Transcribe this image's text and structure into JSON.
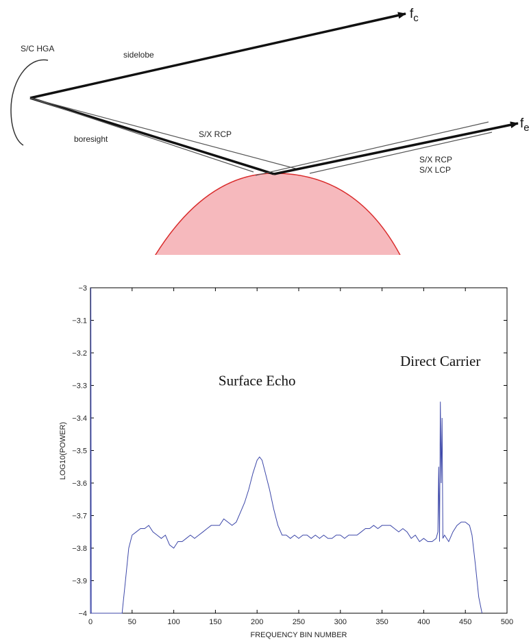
{
  "diagram": {
    "labels": {
      "hga": "S/C HGA",
      "sidelobe": "sidelobe",
      "boresight": "boresight",
      "rcp_in": "S/X RCP",
      "rcp_out": "S/X RCP",
      "lcp_out": "S/X LCP",
      "fc_main": "f",
      "fc_sub": "c",
      "fe_main": "f",
      "fe_sub": "e"
    },
    "colors": {
      "planet_fill": "#f6b9bd",
      "planet_stroke": "#d92b2b"
    }
  },
  "chart_data": {
    "type": "line",
    "title": "",
    "xlabel": "FREQUENCY BIN NUMBER",
    "ylabel": "LOG10(POWER)",
    "xlim": [
      0,
      500
    ],
    "ylim": [
      -4,
      -3
    ],
    "xticks": [
      0,
      50,
      100,
      150,
      200,
      250,
      300,
      350,
      400,
      450,
      500
    ],
    "yticks": [
      -3,
      -3.1,
      -3.2,
      -3.3,
      -3.4,
      -3.5,
      -3.6,
      -3.7,
      -3.8,
      -3.9,
      -4
    ],
    "annotations": [
      {
        "text": "Surface Echo",
        "x": 200,
        "y": -3.3
      },
      {
        "text": "Direct Carrier",
        "x": 420,
        "y": -3.24
      }
    ],
    "series": [
      {
        "color": "#3b46a8",
        "x": [
          0,
          0.5,
          1,
          38,
          42,
          46,
          50,
          55,
          60,
          65,
          70,
          75,
          80,
          85,
          90,
          95,
          100,
          105,
          110,
          115,
          120,
          125,
          130,
          135,
          140,
          145,
          150,
          155,
          160,
          165,
          170,
          175,
          180,
          185,
          190,
          195,
          200,
          203,
          206,
          210,
          215,
          220,
          225,
          230,
          235,
          240,
          245,
          250,
          255,
          260,
          265,
          270,
          275,
          280,
          285,
          290,
          295,
          300,
          305,
          310,
          315,
          320,
          325,
          330,
          335,
          340,
          345,
          350,
          355,
          360,
          365,
          370,
          375,
          380,
          385,
          390,
          395,
          400,
          405,
          410,
          415,
          417,
          418,
          419,
          420,
          421,
          422,
          423,
          425,
          430,
          435,
          440,
          445,
          450,
          455,
          458,
          462,
          466,
          470
        ],
        "y": [
          -4,
          -3,
          -4,
          -4,
          -3.9,
          -3.8,
          -3.76,
          -3.75,
          -3.74,
          -3.74,
          -3.73,
          -3.75,
          -3.76,
          -3.77,
          -3.76,
          -3.79,
          -3.8,
          -3.78,
          -3.78,
          -3.77,
          -3.76,
          -3.77,
          -3.76,
          -3.75,
          -3.74,
          -3.73,
          -3.73,
          -3.73,
          -3.71,
          -3.72,
          -3.73,
          -3.72,
          -3.69,
          -3.66,
          -3.62,
          -3.57,
          -3.53,
          -3.52,
          -3.53,
          -3.57,
          -3.62,
          -3.68,
          -3.73,
          -3.76,
          -3.76,
          -3.77,
          -3.76,
          -3.77,
          -3.76,
          -3.76,
          -3.77,
          -3.76,
          -3.77,
          -3.76,
          -3.77,
          -3.77,
          -3.76,
          -3.76,
          -3.77,
          -3.76,
          -3.76,
          -3.76,
          -3.75,
          -3.74,
          -3.74,
          -3.73,
          -3.74,
          -3.73,
          -3.73,
          -3.73,
          -3.74,
          -3.75,
          -3.74,
          -3.75,
          -3.77,
          -3.76,
          -3.78,
          -3.77,
          -3.78,
          -3.78,
          -3.77,
          -3.75,
          -3.55,
          -3.78,
          -3.35,
          -3.6,
          -3.4,
          -3.77,
          -3.76,
          -3.78,
          -3.75,
          -3.73,
          -3.72,
          -3.72,
          -3.73,
          -3.76,
          -3.85,
          -3.95,
          -4
        ]
      }
    ]
  }
}
